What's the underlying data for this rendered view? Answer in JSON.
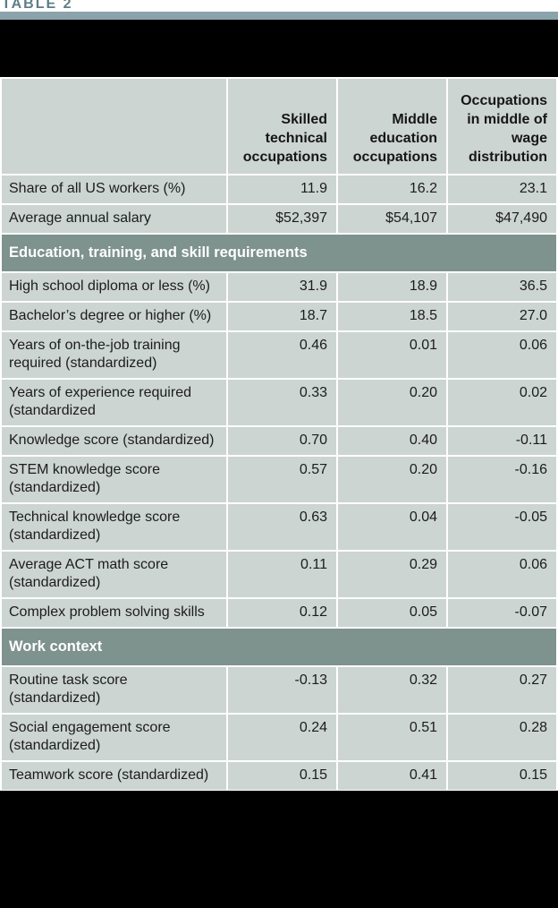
{
  "table_label": "TABLE 2",
  "colors": {
    "accent_bar": "#8ba3ab",
    "table_label_text": "#5d7d86",
    "cell_background": "#ccd5d1",
    "section_band_background": "#7e928e",
    "section_band_text": "#ffffff",
    "redacted_band": "#000000",
    "body_text": "#1c1c1c"
  },
  "table": {
    "columns": [
      "",
      "Skilled technical occupations",
      "Middle education occupations",
      "Occupations in middle of wage distribution"
    ],
    "rows": [
      {
        "type": "data",
        "label": "Share of all US workers (%)",
        "values": [
          "11.9",
          "16.2",
          "23.1"
        ]
      },
      {
        "type": "data",
        "label": "Average annual salary",
        "values": [
          "$52,397",
          "$54,107",
          "$47,490"
        ]
      },
      {
        "type": "section",
        "label": "Education, training, and skill requirements"
      },
      {
        "type": "data",
        "label": "High school diploma or less (%)",
        "values": [
          "31.9",
          "18.9",
          "36.5"
        ]
      },
      {
        "type": "data",
        "label": "Bachelor’s degree or higher (%)",
        "values": [
          "18.7",
          "18.5",
          "27.0"
        ]
      },
      {
        "type": "data",
        "label": "Years of on-the-job training required (standardized)",
        "values": [
          "0.46",
          "0.01",
          "0.06"
        ]
      },
      {
        "type": "data",
        "label": "Years of experience required (standardized",
        "values": [
          "0.33",
          "0.20",
          "0.02"
        ]
      },
      {
        "type": "data",
        "label": "Knowledge score (standardized)",
        "values": [
          "0.70",
          "0.40",
          "-0.11"
        ]
      },
      {
        "type": "data",
        "label": "STEM knowledge score (standardized)",
        "values": [
          "0.57",
          "0.20",
          "-0.16"
        ]
      },
      {
        "type": "data",
        "label": "Technical knowledge score (standardized)",
        "values": [
          "0.63",
          "0.04",
          "-0.05"
        ]
      },
      {
        "type": "data",
        "label": "Average ACT math score (standardized)",
        "values": [
          "0.11",
          "0.29",
          "0.06"
        ]
      },
      {
        "type": "data",
        "label": "Complex problem solving skills",
        "values": [
          "0.12",
          "0.05",
          "-0.07"
        ]
      },
      {
        "type": "section",
        "label": "Work context"
      },
      {
        "type": "data",
        "label": "Routine task score (standardized)",
        "values": [
          "-0.13",
          "0.32",
          "0.27"
        ]
      },
      {
        "type": "data",
        "label": "Social engagement score (standardized)",
        "values": [
          "0.24",
          "0.51",
          "0.28"
        ]
      },
      {
        "type": "data",
        "label": "Teamwork score (standardized)",
        "values": [
          "0.15",
          "0.41",
          "0.15"
        ]
      }
    ]
  }
}
